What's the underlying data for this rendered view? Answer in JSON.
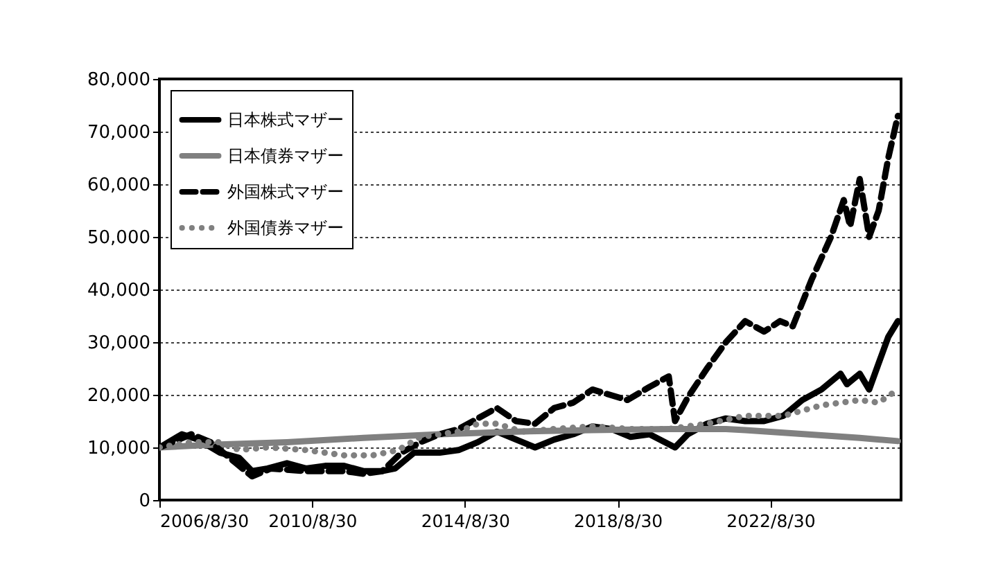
{
  "chart_data": {
    "type": "line",
    "grid": "y",
    "legend": "top left",
    "ylim": [
      0,
      80000
    ],
    "yticks": [
      0,
      {
        "value": 10000,
        "label": "10,000"
      },
      {
        "value": 20000,
        "label": "20,000"
      },
      {
        "value": 30000,
        "label": "30,000"
      },
      {
        "value": 40000,
        "label": "40,000"
      },
      {
        "value": 50000,
        "label": "50,000"
      },
      {
        "value": 60000,
        "label": "60,000"
      },
      {
        "value": 70000,
        "label": "70,000"
      },
      {
        "value": 80000,
        "label": "80,000"
      }
    ],
    "xlim": [
      "2006-08-30",
      "2026-01-31"
    ],
    "xticks": [
      {
        "value": "2006-08-30",
        "label": "2006/8/30"
      },
      {
        "value": "2010-08-30",
        "label": "2010/8/30"
      },
      {
        "value": "2014-08-30",
        "label": "2014/8/30"
      },
      {
        "value": "2018-08-30",
        "label": "2018/8/30"
      },
      {
        "value": "2022-08-30",
        "label": "2022/8/30"
      }
    ],
    "series": [
      {
        "name": "日本株式マザー",
        "color": "#000000",
        "line_style": "solid",
        "x": [
          "2006-09",
          "2007-04",
          "2007-09",
          "2008-04",
          "2008-10",
          "2009-02",
          "2009-07",
          "2010-01",
          "2010-07",
          "2011-01",
          "2011-07",
          "2012-01",
          "2012-07",
          "2012-11",
          "2013-05",
          "2014-01",
          "2014-07",
          "2015-01",
          "2015-07",
          "2016-01",
          "2016-07",
          "2017-01",
          "2017-07",
          "2018-01",
          "2018-07",
          "2019-01",
          "2019-07",
          "2020-03",
          "2020-07",
          "2021-01",
          "2021-07",
          "2022-01",
          "2022-07",
          "2023-01",
          "2023-07",
          "2024-01",
          "2024-07",
          "2024-09",
          "2025-01",
          "2025-04",
          "2025-07",
          "2025-10",
          "2026-01"
        ],
        "values": [
          10000,
          12500,
          11500,
          9000,
          8000,
          5500,
          6000,
          7000,
          6000,
          6500,
          6500,
          5500,
          5500,
          6000,
          9000,
          9000,
          9500,
          11000,
          13000,
          11500,
          10000,
          11500,
          12500,
          14000,
          13500,
          12000,
          12500,
          10000,
          12500,
          14500,
          15500,
          15000,
          15000,
          16000,
          19000,
          21000,
          24000,
          22000,
          24000,
          21000,
          26000,
          31000,
          34000
        ]
      },
      {
        "name": "日本債券マザー",
        "color": "#808080",
        "line_style": "solid",
        "x": [
          "2006-09",
          "2008-01",
          "2010-01",
          "2012-01",
          "2014-01",
          "2016-01",
          "2018-01",
          "2020-01",
          "2021-07",
          "2022-01",
          "2023-01",
          "2024-01",
          "2025-01",
          "2026-01"
        ],
        "values": [
          10000,
          10500,
          11000,
          11800,
          12500,
          13000,
          13300,
          13500,
          13500,
          13300,
          12800,
          12300,
          11800,
          11200
        ]
      },
      {
        "name": "外国株式マザー",
        "color": "#000000",
        "line_style": "dashed",
        "x": [
          "2006-09",
          "2007-07",
          "2008-01",
          "2008-09",
          "2009-02",
          "2009-08",
          "2010-07",
          "2011-07",
          "2012-01",
          "2012-07",
          "2013-01",
          "2013-07",
          "2014-01",
          "2014-07",
          "2015-07",
          "2016-01",
          "2016-07",
          "2017-01",
          "2017-07",
          "2018-01",
          "2018-12",
          "2019-07",
          "2020-01",
          "2020-03",
          "2020-07",
          "2021-01",
          "2021-07",
          "2022-01",
          "2022-07",
          "2022-12",
          "2023-04",
          "2023-10",
          "2024-04",
          "2024-08",
          "2024-10",
          "2025-01",
          "2025-04",
          "2025-07",
          "2025-10",
          "2026-01"
        ],
        "values": [
          10000,
          12500,
          11000,
          7000,
          4500,
          6000,
          5500,
          5500,
          5000,
          5500,
          9000,
          11000,
          12500,
          13500,
          17500,
          15000,
          14500,
          17500,
          18500,
          21000,
          19000,
          21500,
          23500,
          15000,
          19500,
          25000,
          30000,
          34000,
          32000,
          34000,
          33000,
          42000,
          50000,
          57000,
          52000,
          61000,
          50000,
          55000,
          65000,
          73000
        ]
      },
      {
        "name": "外国債券マザー",
        "color": "#808080",
        "line_style": "dotted",
        "x": [
          "2006-09",
          "2007-07",
          "2008-04",
          "2008-10",
          "2009-07",
          "2010-07",
          "2011-07",
          "2012-04",
          "2012-12",
          "2013-07",
          "2014-07",
          "2015-01",
          "2015-07",
          "2016-03",
          "2017-01",
          "2018-01",
          "2019-01",
          "2020-01",
          "2021-01",
          "2022-01",
          "2023-01",
          "2024-01",
          "2025-01",
          "2025-07",
          "2026-01"
        ],
        "values": [
          10000,
          11000,
          11000,
          9500,
          10000,
          9500,
          8500,
          8500,
          9500,
          12000,
          13000,
          14500,
          14500,
          13000,
          13500,
          14000,
          13500,
          13500,
          14500,
          16000,
          16000,
          18000,
          19000,
          18500,
          21000
        ]
      }
    ]
  }
}
